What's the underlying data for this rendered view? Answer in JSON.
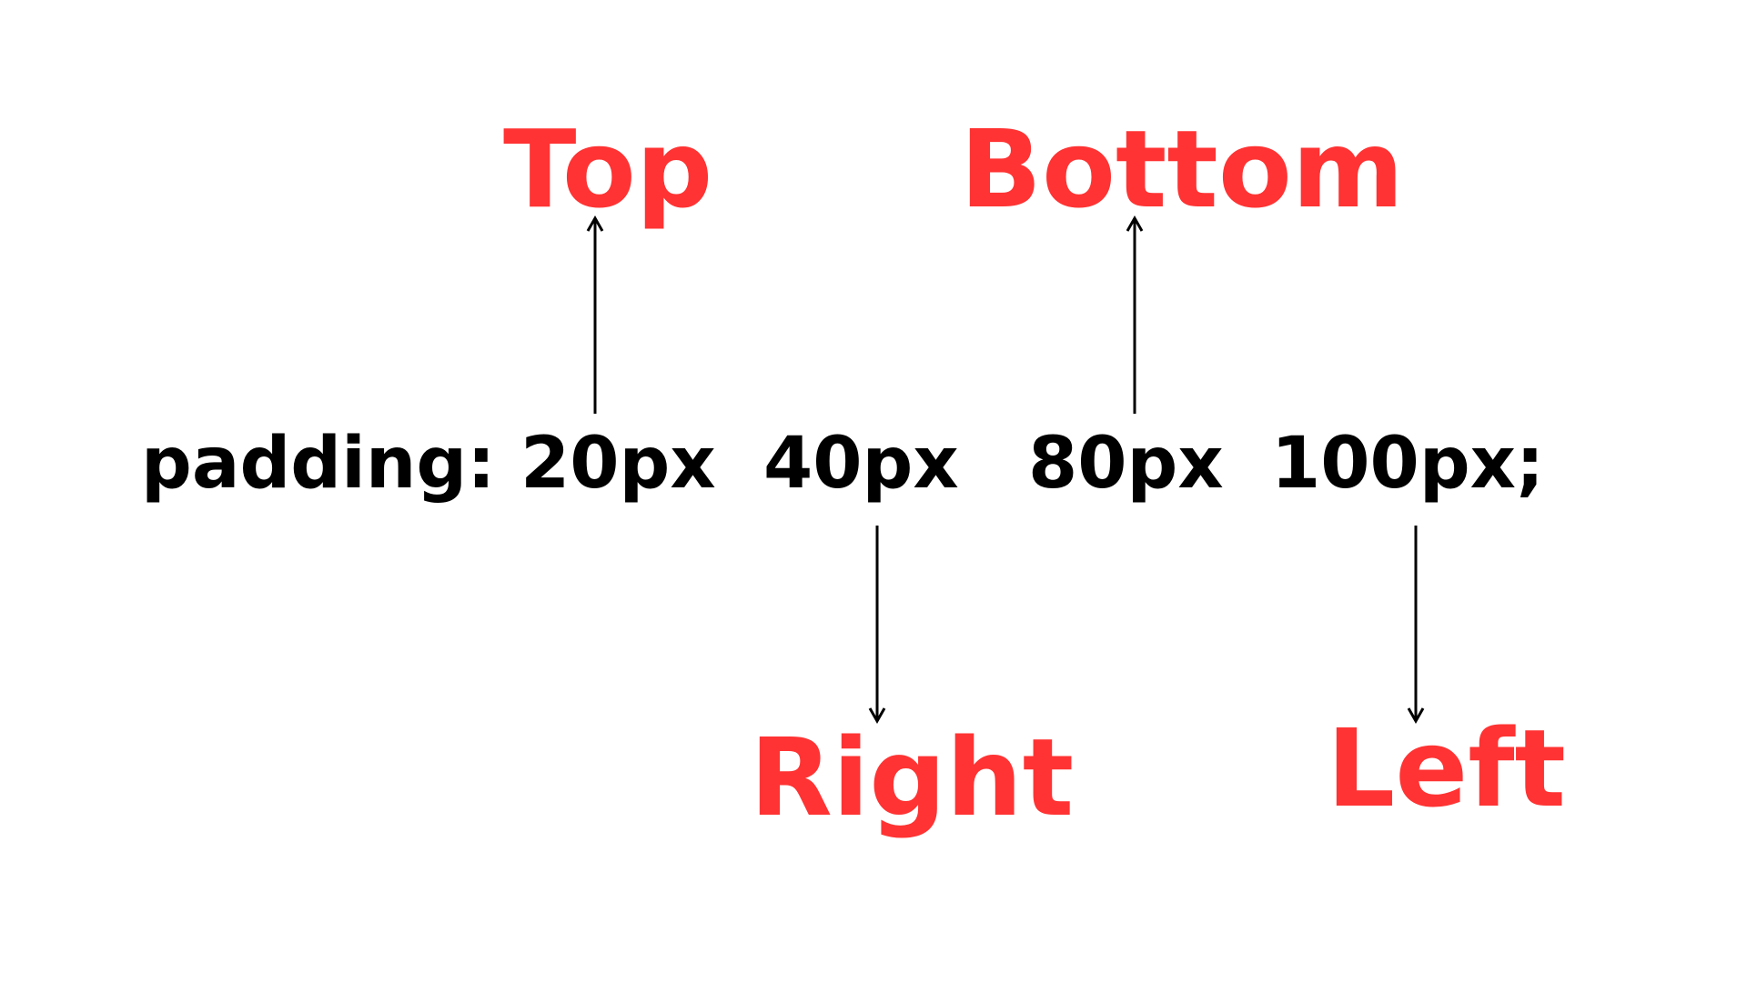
{
  "code": {
    "property": "padding:",
    "values": [
      "20px",
      "40px",
      "80px",
      "100px;"
    ]
  },
  "labels": {
    "top": "Top",
    "right": "Right",
    "bottom": "Bottom",
    "left": "Left"
  },
  "colors": {
    "label": "#ff3333",
    "code": "#000000",
    "arrow": "#000000",
    "background": "#ffffff"
  }
}
